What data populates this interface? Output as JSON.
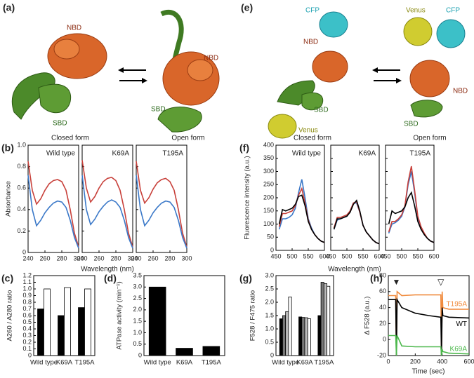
{
  "structures": [
    {
      "panel": "(a)",
      "closed_label": "Closed form",
      "open_label": "Open form",
      "closed_domains": [
        "NBD",
        "SBD"
      ],
      "open_domains": [
        "NBD",
        "SBD"
      ]
    },
    {
      "panel": "(e)",
      "closed_label": "Closed form",
      "open_label": "Open form",
      "closed_domains": [
        "CFP",
        "NBD",
        "SBD",
        "Venus"
      ],
      "open_domains": [
        "Venus",
        "CFP",
        "NBD",
        "SBD"
      ]
    }
  ],
  "chart_data": [
    {
      "type": "line",
      "panel": "(b)",
      "ylabel": "Absorbance",
      "xlabel": "Wavelength (nm)",
      "x": [
        240,
        245,
        250,
        255,
        260,
        265,
        270,
        275,
        280,
        285,
        290,
        295,
        300
      ],
      "xlim": [
        240,
        300
      ],
      "xticks": [
        240,
        260,
        280,
        300
      ],
      "ylim": [
        0,
        1
      ],
      "yticks": [
        0,
        0.2,
        0.4,
        0.6,
        0.8,
        {
          "value": 1,
          "label": "1.0"
        }
      ],
      "subplots": [
        {
          "title": "Wild type",
          "series": [
            {
              "color": "#c8403a",
              "values": [
                0.85,
                0.58,
                0.45,
                0.5,
                0.58,
                0.64,
                0.67,
                0.68,
                0.66,
                0.58,
                0.4,
                0.18,
                0.05
              ]
            },
            {
              "color": "#3a78c8",
              "values": [
                0.72,
                0.4,
                0.25,
                0.3,
                0.37,
                0.42,
                0.46,
                0.48,
                0.47,
                0.42,
                0.3,
                0.14,
                0.04
              ]
            }
          ]
        },
        {
          "title": "K69A",
          "series": [
            {
              "color": "#c8403a",
              "values": [
                0.86,
                0.6,
                0.47,
                0.52,
                0.6,
                0.66,
                0.69,
                0.7,
                0.67,
                0.58,
                0.4,
                0.18,
                0.05
              ]
            },
            {
              "color": "#3a78c8",
              "values": [
                0.72,
                0.4,
                0.26,
                0.31,
                0.38,
                0.43,
                0.47,
                0.49,
                0.47,
                0.42,
                0.3,
                0.14,
                0.04
              ]
            }
          ]
        },
        {
          "title": "T195A",
          "series": [
            {
              "color": "#c8403a",
              "values": [
                0.85,
                0.58,
                0.46,
                0.51,
                0.59,
                0.65,
                0.68,
                0.69,
                0.66,
                0.58,
                0.4,
                0.18,
                0.05
              ]
            },
            {
              "color": "#3a78c8",
              "values": [
                0.72,
                0.4,
                0.25,
                0.3,
                0.37,
                0.42,
                0.46,
                0.48,
                0.47,
                0.42,
                0.3,
                0.14,
                0.04
              ]
            }
          ]
        }
      ]
    },
    {
      "type": "line",
      "panel": "(f)",
      "ylabel": "Fluorescence intensity (a.u.)",
      "xlabel": "Wavelength (nm)",
      "x": [
        460,
        470,
        480,
        490,
        500,
        510,
        520,
        530,
        540,
        550,
        560,
        570,
        580,
        590,
        600
      ],
      "xlim": [
        450,
        600
      ],
      "xticks": [
        450,
        500,
        550,
        600
      ],
      "ylim": [
        0,
        400
      ],
      "yticks": [
        0,
        50,
        100,
        150,
        200,
        250,
        300,
        350,
        400
      ],
      "subplots": [
        {
          "title": "Wild type",
          "series": [
            {
              "color": "#3a78c8",
              "values": [
                80,
                120,
                120,
                125,
                135,
                160,
                220,
                270,
                200,
                120,
                85,
                60,
                45,
                35,
                30
              ]
            },
            {
              "color": "#c8403a",
              "values": [
                90,
                140,
                140,
                145,
                150,
                170,
                210,
                235,
                180,
                115,
                80,
                60,
                45,
                35,
                30
              ]
            },
            {
              "color": "#000000",
              "values": [
                100,
                155,
                150,
                155,
                160,
                175,
                205,
                210,
                170,
                110,
                80,
                60,
                45,
                35,
                30
              ]
            }
          ]
        },
        {
          "title": "K69A",
          "series": [
            {
              "color": "#3a78c8",
              "values": [
                80,
                115,
                120,
                125,
                130,
                150,
                180,
                180,
                145,
                95,
                70,
                55,
                40,
                30,
                25
              ]
            },
            {
              "color": "#c8403a",
              "values": [
                85,
                125,
                125,
                130,
                135,
                150,
                180,
                185,
                145,
                95,
                70,
                55,
                40,
                30,
                25
              ]
            },
            {
              "color": "#000000",
              "values": [
                80,
                120,
                120,
                125,
                130,
                145,
                175,
                190,
                150,
                95,
                70,
                55,
                40,
                30,
                25
              ]
            }
          ]
        },
        {
          "title": "T195A",
          "series": [
            {
              "color": "#3a78c8",
              "values": [
                65,
                100,
                105,
                115,
                130,
                165,
                250,
                300,
                220,
                125,
                85,
                60,
                45,
                35,
                30
              ]
            },
            {
              "color": "#c8403a",
              "values": [
                70,
                110,
                110,
                120,
                135,
                170,
                260,
                320,
                230,
                130,
                90,
                65,
                45,
                35,
                30
              ]
            },
            {
              "color": "#000000",
              "values": [
                100,
                150,
                140,
                145,
                150,
                165,
                200,
                220,
                170,
                110,
                80,
                60,
                45,
                35,
                30
              ]
            }
          ]
        }
      ]
    },
    {
      "type": "bar",
      "panel": "(c)",
      "ylabel": "A260 / A280 ratio",
      "categories": [
        "Wild type",
        "K69A",
        "T195A"
      ],
      "ylim": [
        0,
        1.2
      ],
      "yticks": [
        0,
        0.1,
        0.2,
        0.3,
        0.4,
        0.5,
        0.6,
        0.7,
        0.8,
        0.9,
        {
          "value": 1,
          "label": "1.0"
        },
        1.1,
        1.2
      ],
      "series": [
        {
          "color": "#000000",
          "values": [
            0.7,
            0.6,
            0.72
          ]
        },
        {
          "color": "#ffffff",
          "values": [
            1.0,
            1.02,
            1.0
          ]
        }
      ]
    },
    {
      "type": "bar",
      "panel": "(d)",
      "ylabel": "ATPase activity (min⁻¹)",
      "categories": [
        "Wild type",
        "K69A",
        "T195A"
      ],
      "ylim": [
        0,
        3.5
      ],
      "yticks": [
        0,
        0.5,
        {
          "value": 1,
          "label": "1.0"
        },
        1.5,
        {
          "value": 2,
          "label": "2.0"
        },
        2.5,
        {
          "value": 3,
          "label": "3.0"
        },
        3.5
      ],
      "series": [
        {
          "color": "#000000",
          "values": [
            3.0,
            0.32,
            0.4
          ]
        }
      ]
    },
    {
      "type": "bar",
      "panel": "(g)",
      "ylabel": "F528 / F475 ratio",
      "categories": [
        "Wild type",
        "K69A",
        "T195A"
      ],
      "ylim": [
        0,
        3
      ],
      "yticks": [
        0,
        0.5,
        {
          "value": 1,
          "label": "1.0"
        },
        1.5,
        {
          "value": 2,
          "label": "2.0"
        },
        2.5,
        {
          "value": 3,
          "label": "3.0"
        }
      ],
      "series": [
        {
          "color": "#000000",
          "values": [
            1.38,
            1.45,
            1.5
          ]
        },
        {
          "color": "#777777",
          "values": [
            1.5,
            1.43,
            2.75
          ]
        },
        {
          "color": "#bbbbbb",
          "values": [
            1.65,
            1.42,
            2.7
          ]
        },
        {
          "color": "#ffffff",
          "values": [
            2.2,
            1.38,
            2.6
          ]
        }
      ]
    },
    {
      "type": "line",
      "panel": "(h)",
      "ylabel": "Δ F528 (a.u.)",
      "xlabel": "Time (sec)",
      "x": [
        0,
        55,
        60,
        65,
        100,
        200,
        300,
        390,
        395,
        400,
        405,
        450,
        600
      ],
      "xlim": [
        0,
        600
      ],
      "xticks": [
        0,
        200,
        400,
        600
      ],
      "ylim": [
        -20,
        80
      ],
      "yticks": [
        -20,
        0,
        20,
        40,
        60,
        80
      ],
      "series": [
        {
          "name": "T195A",
          "color": "#f08a3c",
          "values": [
            55,
            55,
            -20,
            60,
            55,
            56,
            56,
            56,
            -20,
            60,
            40,
            38,
            38
          ]
        },
        {
          "name": "WT",
          "color": "#000000",
          "values": [
            50,
            50,
            -20,
            50,
            40,
            33,
            30,
            28,
            -20,
            40,
            30,
            28,
            27
          ]
        },
        {
          "name": "K69A",
          "color": "#4cb84c",
          "values": [
            5,
            5,
            -20,
            5,
            -8,
            -9,
            -9,
            -9,
            -20,
            -12,
            -15,
            -17,
            -18
          ]
        }
      ],
      "annotations": [
        {
          "x": 60,
          "label": "▼"
        },
        {
          "x": 390,
          "label": "▽"
        }
      ]
    }
  ]
}
